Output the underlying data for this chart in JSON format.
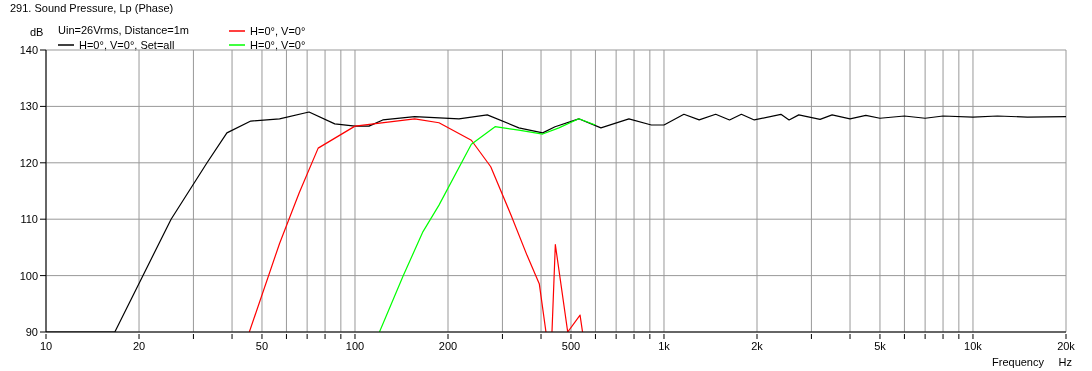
{
  "chart_data": {
    "type": "line",
    "title": "291. Sound Pressure, Lp (Phase)",
    "xlabel": "Frequency",
    "ylabel": "dB",
    "annotations": [
      "Uin=26Vrms, Distance=1m",
      "Hz"
    ],
    "log": "x",
    "grid": true,
    "legend": "top left",
    "line_style": "solid",
    "marker": "none",
    "xlim": [
      10,
      20000
    ],
    "ylim": [
      90,
      140
    ],
    "xticks": [
      10,
      20,
      {
        "value": 30,
        "label": null
      },
      {
        "value": 40,
        "label": null
      },
      50,
      {
        "value": 60,
        "label": null
      },
      {
        "value": 70,
        "label": null
      },
      {
        "value": 80,
        "label": null
      },
      {
        "value": 90,
        "label": null
      },
      100,
      200,
      {
        "value": 300,
        "label": null
      },
      {
        "value": 400,
        "label": null
      },
      500,
      {
        "value": 600,
        "label": null
      },
      {
        "value": 700,
        "label": null
      },
      {
        "value": 800,
        "label": null
      },
      {
        "value": 900,
        "label": null
      },
      {
        "value": 1000,
        "label": "1k"
      },
      {
        "value": 2000,
        "label": "2k"
      },
      {
        "value": 3000,
        "label": null
      },
      {
        "value": 4000,
        "label": null
      },
      {
        "value": 5000,
        "label": "5k"
      },
      {
        "value": 6000,
        "label": null
      },
      {
        "value": 7000,
        "label": null
      },
      {
        "value": 8000,
        "label": null
      },
      {
        "value": 9000,
        "label": null
      },
      {
        "value": 10000,
        "label": "10k"
      },
      {
        "value": 20000,
        "label": "20k"
      }
    ],
    "yticks": [
      90,
      100,
      110,
      120,
      130,
      140
    ],
    "series": [
      {
        "name": "H=0°, V=0°, Set=all",
        "color": "#000000",
        "x": [
          10,
          16.7,
          25.4,
          33.2,
          38.5,
          46,
          57,
          71,
          86,
          100,
          111,
          123,
          156,
          217,
          268,
          339,
          405,
          444,
          530,
          625,
          770,
          910,
          1000,
          1160,
          1300,
          1470,
          1630,
          1780,
          1960,
          2390,
          2540,
          2730,
          3200,
          3500,
          4000,
          4500,
          5000,
          6000,
          7000,
          8000,
          10000,
          12000,
          15000,
          20000
        ],
        "values": [
          90,
          90,
          110,
          120,
          125.3,
          127.4,
          127.8,
          129,
          126.9,
          126.5,
          126.5,
          127.6,
          128.2,
          127.8,
          128.5,
          126.2,
          125.3,
          126.4,
          127.8,
          126.2,
          127.8,
          126.7,
          126.7,
          128.6,
          127.6,
          128.6,
          127.6,
          128.6,
          127.6,
          128.6,
          127.6,
          128.5,
          127.7,
          128.5,
          127.8,
          128.4,
          127.9,
          128.3,
          127.9,
          128.3,
          128.1,
          128.3,
          128.1,
          128.2
        ]
      },
      {
        "name": "H=0°, V=0°",
        "color": "#ff0000",
        "x": [
          45.5,
          57,
          66,
          76,
          100,
          156,
          187,
          238,
          275,
          320,
          361,
          395,
          415,
          425,
          434,
          445,
          488,
          535,
          545
        ],
        "values": [
          90,
          105.7,
          114.7,
          122.6,
          126.5,
          127.8,
          127.1,
          124,
          119.3,
          110.7,
          103.5,
          98.5,
          90,
          null,
          90,
          105.5,
          90,
          93,
          90
        ]
      },
      {
        "name": "H=0°, V=0°",
        "color": "#00ff00",
        "x": [
          120,
          143,
          166,
          187,
          238,
          284,
          339,
          405,
          457,
          530,
          600
        ],
        "values": [
          90,
          99.9,
          107.8,
          112.5,
          123.3,
          126.4,
          125.8,
          125.1,
          126.2,
          127.8,
          126.7
        ]
      }
    ]
  }
}
